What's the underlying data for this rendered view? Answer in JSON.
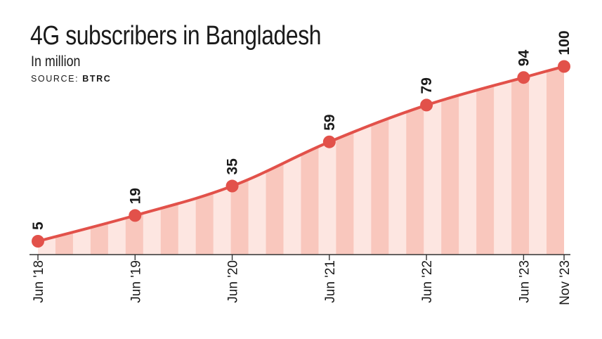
{
  "header": {
    "title": "4G subscribers in Bangladesh",
    "subtitle": "In million",
    "source_prefix": "SOURCE:",
    "source_name": "BTRC"
  },
  "colors": {
    "line": "#e2514a",
    "fill_dark": "#f9c7bd",
    "fill_light": "#fde6e1",
    "axis": "#333333"
  },
  "chart_data": {
    "type": "area",
    "title": "4G subscribers in Bangladesh",
    "subtitle": "In million",
    "source": "SOURCE: BTRC",
    "x": [
      "Jun '18",
      "Jun '19",
      "Jun '20",
      "Jun '21",
      "Jun '22",
      "Jun '23",
      "Nov '23"
    ],
    "x_months": [
      0,
      12,
      24,
      36,
      48,
      60,
      65
    ],
    "series": [
      {
        "values": [
          5,
          19,
          35,
          59,
          79,
          94,
          100
        ]
      }
    ],
    "data_labels": [
      "5",
      "19",
      "35",
      "59",
      "79",
      "94",
      "100"
    ],
    "ylim": [
      0,
      100
    ],
    "grid": false,
    "legend": "none"
  }
}
